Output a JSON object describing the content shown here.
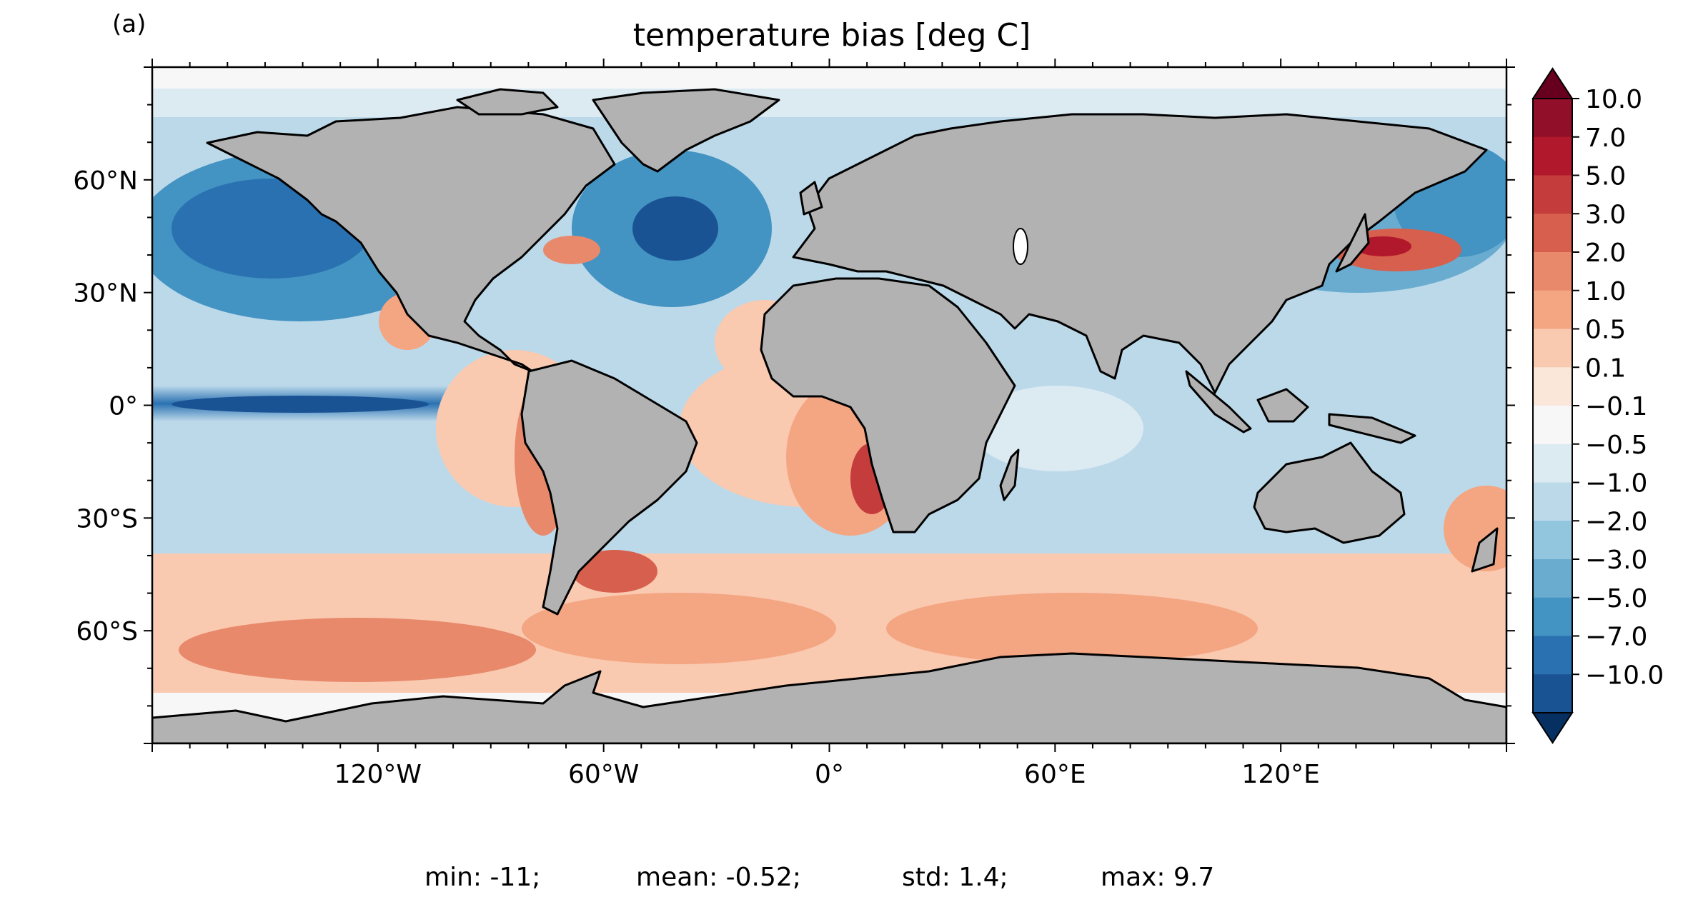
{
  "panel_label": "(a)",
  "title": "temperature bias [deg C]",
  "map": {
    "land_color": "#b2b2b2",
    "coastline_color": "#000000",
    "lat_ticks": [
      "60°N",
      "30°N",
      "0°",
      "30°S",
      "60°S"
    ],
    "lon_ticks": [
      "120°W",
      "60°W",
      "0°",
      "60°E",
      "120°E"
    ],
    "lat_values": [
      60,
      30,
      0,
      -30,
      -60
    ],
    "lon_values": [
      -120,
      -60,
      0,
      60,
      120
    ],
    "lon_range": [
      -180,
      180
    ],
    "lat_range": [
      -90,
      90
    ]
  },
  "colorbar": {
    "levels": [
      "10.0",
      "7.0",
      "5.0",
      "3.0",
      "2.0",
      "1.0",
      "0.5",
      "0.1",
      "−0.1",
      "−0.5",
      "−1.0",
      "−2.0",
      "−3.0",
      "−5.0",
      "−7.0",
      "−10.0"
    ],
    "colors": [
      "#920f29",
      "#b2182b",
      "#c43c3c",
      "#d6604d",
      "#e8896b",
      "#f4a582",
      "#f9c9b0",
      "#fbe6da",
      "#f7f7f7",
      "#dceaf2",
      "#bcd9ea",
      "#92c5de",
      "#6aacd0",
      "#4393c3",
      "#2a71b2",
      "#1a5394"
    ],
    "over_color": "#67001f",
    "under_color": "#053061",
    "extend": "both"
  },
  "stats": {
    "min": "min: -11;",
    "mean": "mean: -0.52;",
    "std": "std: 1.4;",
    "max": "max: 9.7"
  }
}
